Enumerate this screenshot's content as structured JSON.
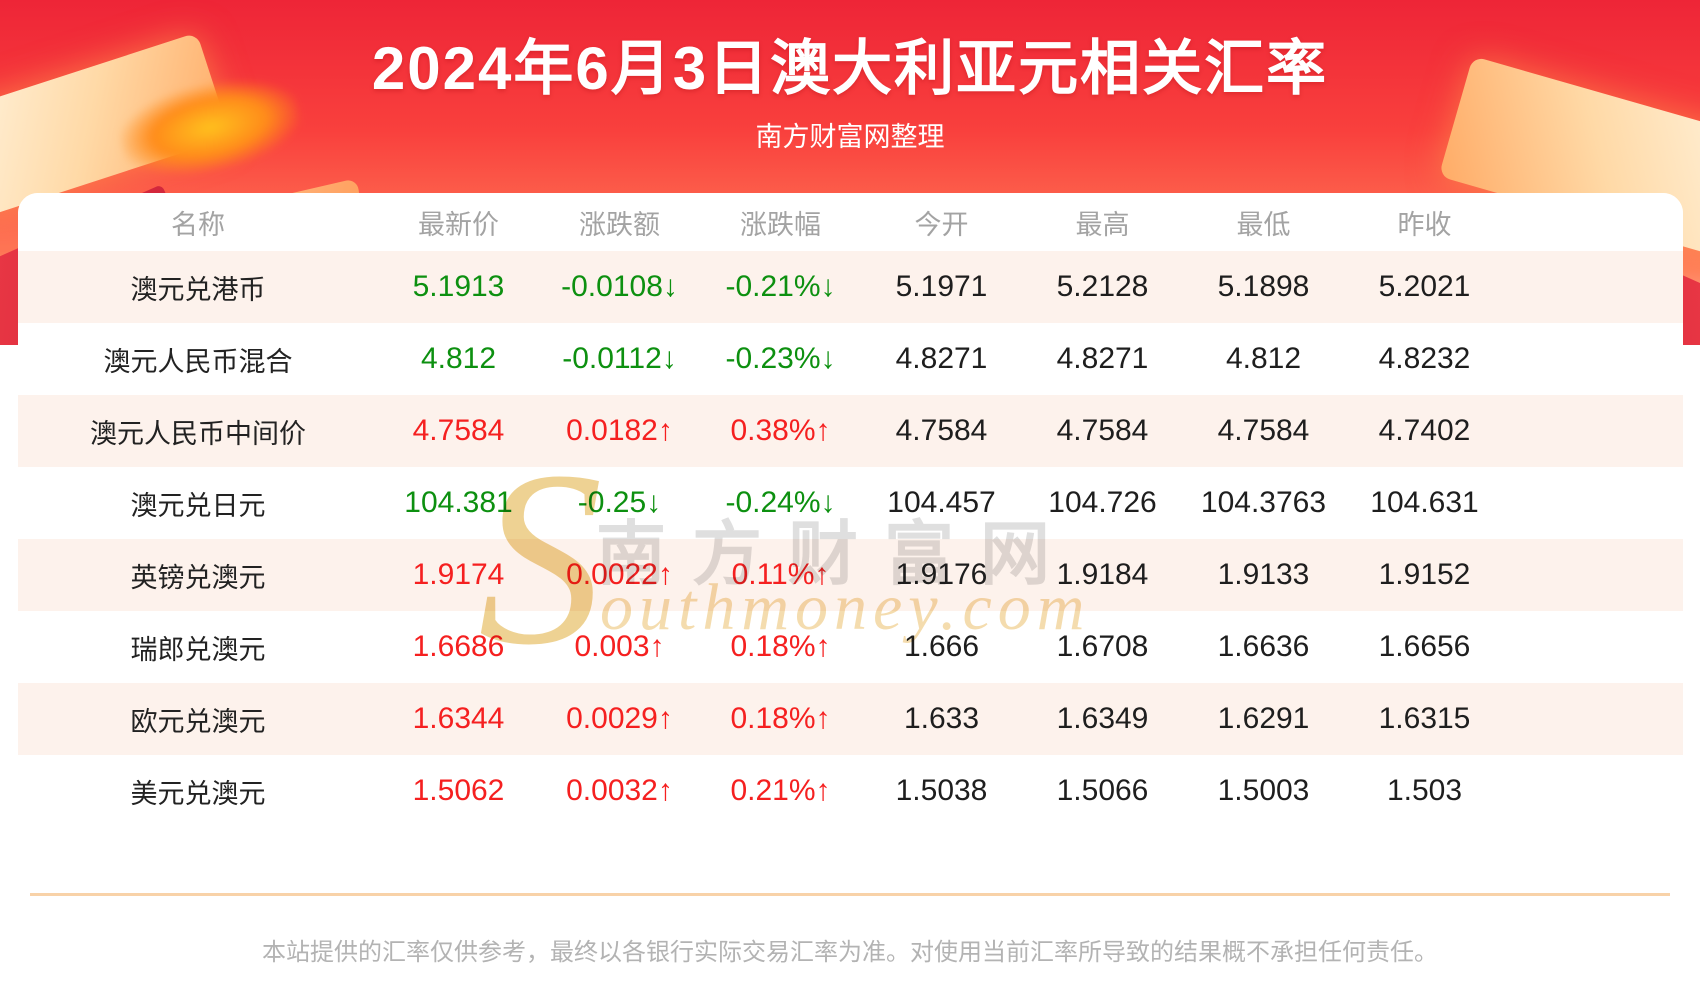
{
  "banner": {
    "title": "2024年6月3日澳大利亚元相关汇率",
    "subtitle": "南方财富网整理"
  },
  "watermark": {
    "initial": "S",
    "cn": "南方财富网",
    "en": "outhmoney.com"
  },
  "chart_data": {
    "type": "table",
    "title": "2024年6月3日澳大利亚元相关汇率",
    "columns": [
      "名称",
      "最新价",
      "涨跌额",
      "涨跌幅",
      "今开",
      "最高",
      "最低",
      "昨收"
    ],
    "rows": [
      {
        "name": "澳元兑港币",
        "latest": "5.1913",
        "change": "-0.0108↓",
        "change_pct": "-0.21%↓",
        "open": "5.1971",
        "high": "5.2128",
        "low": "5.1898",
        "prev_close": "5.2021",
        "direction": "down"
      },
      {
        "name": "澳元人民币混合",
        "latest": "4.812",
        "change": "-0.0112↓",
        "change_pct": "-0.23%↓",
        "open": "4.8271",
        "high": "4.8271",
        "low": "4.812",
        "prev_close": "4.8232",
        "direction": "down"
      },
      {
        "name": "澳元人民币中间价",
        "latest": "4.7584",
        "change": "0.0182↑",
        "change_pct": "0.38%↑",
        "open": "4.7584",
        "high": "4.7584",
        "low": "4.7584",
        "prev_close": "4.7402",
        "direction": "up"
      },
      {
        "name": "澳元兑日元",
        "latest": "104.381",
        "change": "-0.25↓",
        "change_pct": "-0.24%↓",
        "open": "104.457",
        "high": "104.726",
        "low": "104.3763",
        "prev_close": "104.631",
        "direction": "down"
      },
      {
        "name": "英镑兑澳元",
        "latest": "1.9174",
        "change": "0.0022↑",
        "change_pct": "0.11%↑",
        "open": "1.9176",
        "high": "1.9184",
        "low": "1.9133",
        "prev_close": "1.9152",
        "direction": "up"
      },
      {
        "name": "瑞郎兑澳元",
        "latest": "1.6686",
        "change": "0.003↑",
        "change_pct": "0.18%↑",
        "open": "1.666",
        "high": "1.6708",
        "low": "1.6636",
        "prev_close": "1.6656",
        "direction": "up"
      },
      {
        "name": "欧元兑澳元",
        "latest": "1.6344",
        "change": "0.0029↑",
        "change_pct": "0.18%↑",
        "open": "1.633",
        "high": "1.6349",
        "low": "1.6291",
        "prev_close": "1.6315",
        "direction": "up"
      },
      {
        "name": "美元兑澳元",
        "latest": "1.5062",
        "change": "0.0032↑",
        "change_pct": "0.21%↑",
        "open": "1.5038",
        "high": "1.5066",
        "low": "1.5003",
        "prev_close": "1.503",
        "direction": "up"
      }
    ]
  },
  "footer": {
    "disclaimer": "本站提供的汇率仅供参考，最终以各银行实际交易汇率为准。对使用当前汇率所导致的结果概不承担任何责任。"
  },
  "colors": {
    "up_red": "#f52020",
    "down_green": "#0d9010",
    "banner_red": "#f9403d",
    "row_alt_bg": "#fdf2ec"
  }
}
